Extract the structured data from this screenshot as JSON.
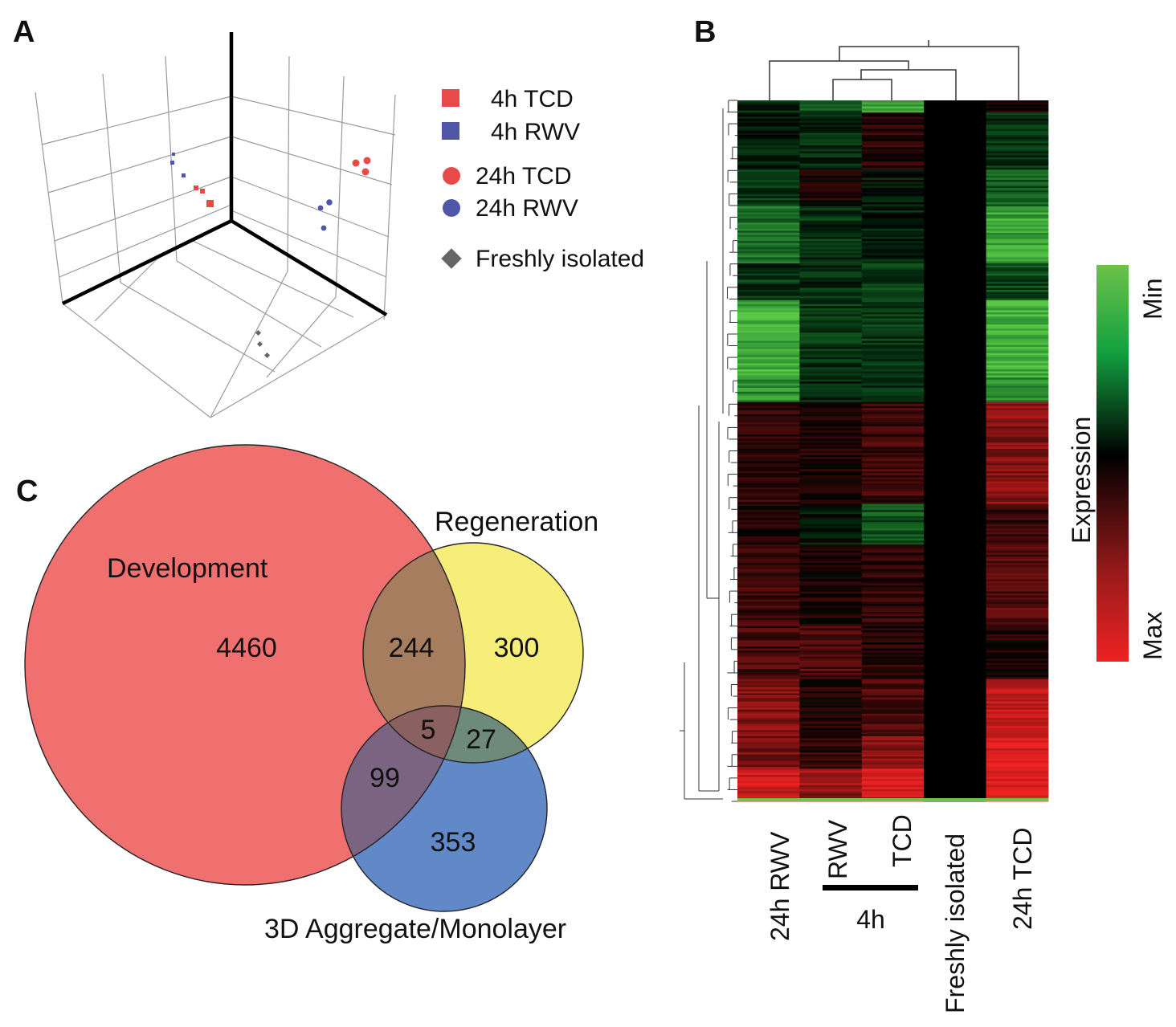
{
  "panels": {
    "a": "A",
    "b": "B",
    "c": "C"
  },
  "pca_legend": [
    {
      "label": "4h TCD",
      "marker": "square",
      "color": "#e84a4a"
    },
    {
      "label": "4h RWV",
      "marker": "square",
      "color": "#5056a8"
    },
    {
      "label": "24h TCD",
      "marker": "circle",
      "color": "#e84a4a"
    },
    {
      "label": "24h RWV",
      "marker": "circle",
      "color": "#5056a8"
    },
    {
      "label": "Freshly isolated",
      "marker": "diamond",
      "color": "#666666"
    }
  ],
  "chart_data": [
    {
      "type": "scatter",
      "title": "",
      "projection": "3d",
      "grid": true,
      "legend_placement": "right",
      "series": [
        {
          "name": "4h TCD",
          "values": [
            [
              0.72,
              0.58,
              0.92
            ],
            [
              0.7,
              0.6,
              0.91
            ],
            [
              0.78,
              0.52,
              0.88
            ]
          ]
        },
        {
          "name": "4h RWV",
          "values": [
            [
              0.3,
              0.7,
              0.62
            ],
            [
              0.34,
              0.66,
              0.6
            ],
            [
              0.42,
              0.62,
              0.64
            ]
          ]
        },
        {
          "name": "24h TCD",
          "values": [
            [
              0.1,
              0.92,
              0.84
            ],
            [
              0.12,
              0.95,
              0.86
            ],
            [
              0.08,
              0.96,
              0.82
            ]
          ]
        },
        {
          "name": "24h RWV",
          "values": [
            [
              0.4,
              0.8,
              0.4
            ],
            [
              0.38,
              0.82,
              0.44
            ],
            [
              0.42,
              0.78,
              0.36
            ]
          ]
        },
        {
          "name": "Freshly isolated",
          "values": [
            [
              0.8,
              0.2,
              0.1
            ],
            [
              0.82,
              0.22,
              0.08
            ],
            [
              0.78,
              0.18,
              0.06
            ]
          ]
        }
      ]
    },
    {
      "type": "heatmap",
      "title": "",
      "columns": [
        "24h RWV",
        "RWV",
        "TCD",
        "Freshly isolated",
        "24h TCD"
      ],
      "column_group": {
        "label": "4h",
        "members": [
          "RWV",
          "TCD"
        ]
      },
      "colorbar": {
        "label": "Expression",
        "min_label": "Min",
        "max_label": "Max",
        "min_color": "#6cc24a",
        "mid_color": "#000000",
        "max_color": "#ee2222"
      },
      "row_blocks": [
        {
          "rows": 6,
          "values": [
            -0.2,
            -0.4,
            -0.8,
            0.0,
            0.1
          ]
        },
        {
          "rows": 28,
          "values": [
            -0.15,
            -0.2,
            0.15,
            0.0,
            -0.25
          ]
        },
        {
          "rows": 18,
          "values": [
            -0.3,
            0.1,
            -0.1,
            0.0,
            -0.45
          ]
        },
        {
          "rows": 28,
          "values": [
            -0.55,
            -0.25,
            -0.15,
            0.0,
            -0.8
          ]
        },
        {
          "rows": 18,
          "values": [
            -0.25,
            -0.2,
            -0.3,
            0.0,
            -0.35
          ]
        },
        {
          "rows": 38,
          "values": [
            -0.85,
            -0.25,
            -0.3,
            0.0,
            -0.9
          ]
        },
        {
          "rows": 12,
          "values": [
            -0.7,
            -0.15,
            -0.2,
            0.0,
            -0.75
          ]
        },
        {
          "rows": 50,
          "values": [
            0.2,
            0.1,
            0.25,
            0.0,
            0.55
          ]
        },
        {
          "rows": 20,
          "values": [
            0.1,
            -0.1,
            -0.4,
            0.0,
            0.2
          ]
        },
        {
          "rows": 40,
          "values": [
            0.25,
            0.1,
            0.2,
            0.0,
            0.35
          ]
        },
        {
          "rows": 26,
          "values": [
            0.3,
            0.35,
            0.15,
            0.0,
            0.1
          ]
        },
        {
          "rows": 28,
          "values": [
            0.55,
            0.1,
            0.3,
            0.0,
            0.8
          ]
        },
        {
          "rows": 16,
          "values": [
            0.5,
            0.2,
            0.55,
            0.0,
            0.95
          ]
        },
        {
          "rows": 10,
          "values": [
            0.9,
            0.65,
            0.95,
            0.0,
            0.95
          ]
        },
        {
          "rows": 6,
          "values": [
            0.85,
            0.55,
            0.8,
            0.0,
            0.9
          ]
        }
      ]
    },
    {
      "type": "venn",
      "title": "",
      "sets": [
        {
          "name": "Development",
          "color": "#f07070"
        },
        {
          "name": "Regeneration",
          "color": "#f6ee78"
        },
        {
          "name": "3D Aggregate/Monolayer",
          "color": "#6189c8"
        }
      ],
      "regions": [
        {
          "sets": [
            "Development"
          ],
          "value": 4460
        },
        {
          "sets": [
            "Development",
            "Regeneration"
          ],
          "value": 244
        },
        {
          "sets": [
            "Regeneration"
          ],
          "value": 300
        },
        {
          "sets": [
            "Development",
            "Regeneration",
            "3D Aggregate/Monolayer"
          ],
          "value": 5
        },
        {
          "sets": [
            "Regeneration",
            "3D Aggregate/Monolayer"
          ],
          "value": 27
        },
        {
          "sets": [
            "Development",
            "3D Aggregate/Monolayer"
          ],
          "value": 99
        },
        {
          "sets": [
            "3D Aggregate/Monolayer"
          ],
          "value": 353
        }
      ]
    }
  ]
}
